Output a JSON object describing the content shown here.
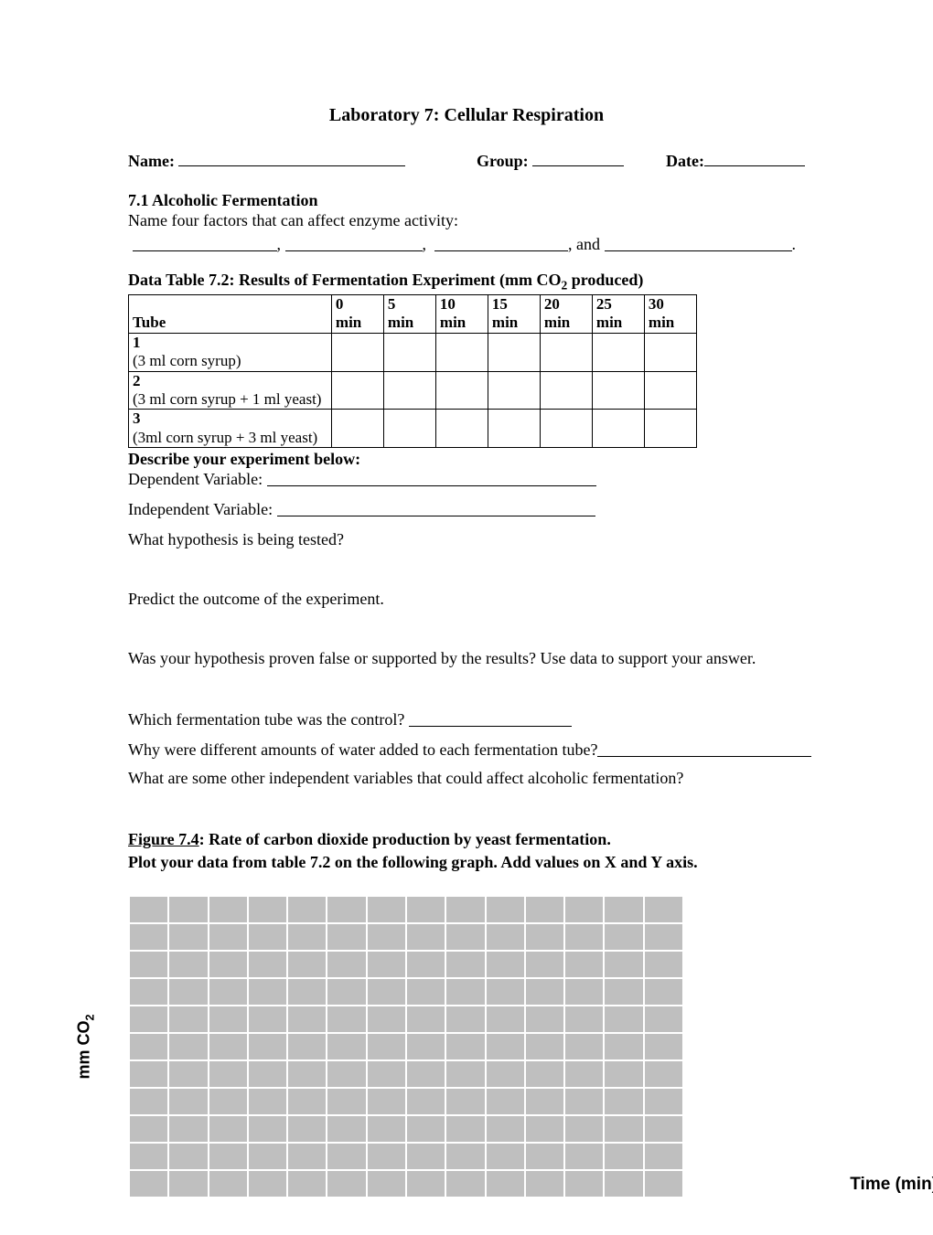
{
  "title": "Laboratory 7: Cellular Respiration",
  "header": {
    "name_label": "Name:",
    "group_label": "Group:",
    "date_label": "Date:"
  },
  "section71": {
    "heading": "7.1 Alcoholic Fermentation",
    "prompt": "Name four factors that can affect enzyme activity:",
    "and": ", and",
    "period": "."
  },
  "table72": {
    "title_prefix": "Data Table 7.2: Results of Fermentation Experiment (mm CO",
    "title_sub": "2",
    "title_suffix": " produced)",
    "col_tube": "Tube",
    "cols": [
      "0",
      "5",
      "10",
      "15",
      "20",
      "25",
      "30"
    ],
    "col_unit": "min",
    "rows": [
      {
        "num": "1",
        "desc": "(3 ml corn syrup)"
      },
      {
        "num": "2",
        "desc": "(3 ml corn syrup + 1 ml yeast)"
      },
      {
        "num": "3",
        "desc": "(3ml corn syrup + 3 ml yeast)"
      }
    ]
  },
  "describe": {
    "heading": "Describe your experiment below:",
    "dep": "Dependent Variable:",
    "indep": "Independent Variable:",
    "q_hypothesis": "What hypothesis is being tested?",
    "q_predict": "Predict the outcome of the experiment.",
    "q_proven": "Was your hypothesis proven false or supported by the results? Use data to support your answer.",
    "q_control_pre": "Which fermentation tube was the control?   ",
    "q_water_pre": "Why were different amounts of water added to each fermentation tube?",
    "q_othervars": "What are some other independent variables that could affect alcoholic fermentation?"
  },
  "figure74": {
    "line1_u": "Figure 7.4",
    "line1_rest": ": Rate of carbon dioxide production by yeast fermentation.",
    "line2": "Plot your data from table 7.2 on the following graph. Add values on X and Y axis.",
    "ylabel_pre": "mm CO",
    "ylabel_sub": "2",
    "xlabel": "Time (min)",
    "grid_rows": 11,
    "grid_cols": 14,
    "cell_bg": "#bfbfbf",
    "cell_border": "#ffffff"
  }
}
